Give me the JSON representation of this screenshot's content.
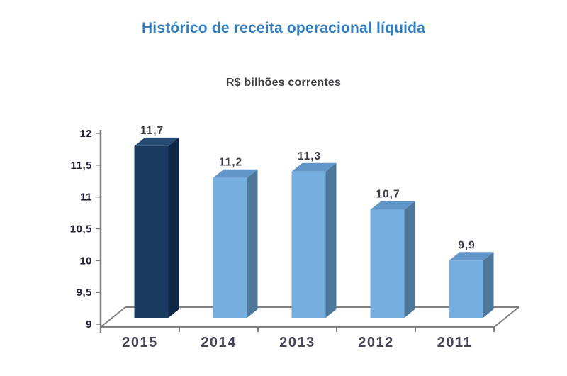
{
  "chart_data": {
    "type": "bar",
    "style": "3d-column",
    "title": "Histórico de receita operacional líquida",
    "subtitle": "R$ bilhões correntes",
    "categories": [
      "2015",
      "2014",
      "2013",
      "2012",
      "2011"
    ],
    "values": [
      11.7,
      11.2,
      11.3,
      10.7,
      9.9
    ],
    "value_labels": [
      "11,7",
      "11,2",
      "11,3",
      "10,7",
      "9,9"
    ],
    "highlight_index": 0,
    "y_ticks": [
      9,
      9.5,
      10,
      10.5,
      11,
      11.5,
      12
    ],
    "y_tick_labels": [
      "9",
      "9,5",
      "10",
      "10,5",
      "11",
      "11,5",
      "12"
    ],
    "ylim": [
      9,
      12
    ],
    "xlabel": "",
    "ylabel": "",
    "grid": false,
    "legend": false,
    "colors": {
      "title": "#2e7fc4",
      "subtitle": "#3f3f44",
      "axis": "#808080",
      "y_tick_label": "#22223a",
      "value_label": "#3d3d4c",
      "year_label": "#46465a",
      "bar_highlight": {
        "front": "#1b3a60",
        "side": "#0e2744",
        "top": "#264970"
      },
      "bar_default": {
        "front": "#76afdf",
        "side": "#4e7899",
        "top": "#6396c8"
      }
    }
  }
}
